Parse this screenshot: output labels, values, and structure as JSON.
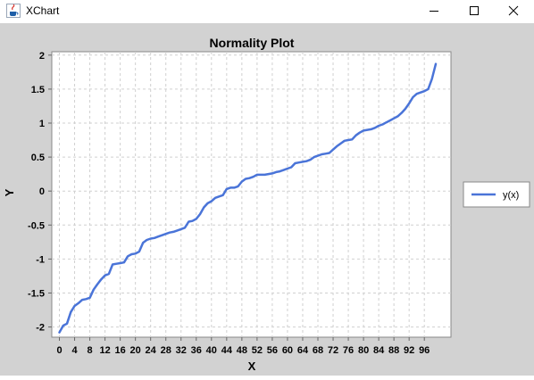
{
  "window": {
    "title": "XChart",
    "icon": "java-cup-icon",
    "controls": [
      "minimize-icon",
      "maximize-icon",
      "close-icon"
    ]
  },
  "chart_data": {
    "type": "line",
    "title": "Normality Plot",
    "xlabel": "X",
    "ylabel": "Y",
    "xlim": [
      -2,
      103
    ],
    "ylim": [
      -2.15,
      2.05
    ],
    "x_ticks": [
      0,
      4,
      8,
      12,
      16,
      20,
      24,
      28,
      32,
      36,
      40,
      44,
      48,
      52,
      56,
      60,
      64,
      68,
      72,
      76,
      80,
      84,
      88,
      92,
      96
    ],
    "x_tick_labels": [
      "0",
      "4",
      "8",
      "12",
      "16",
      "20",
      "24",
      "28",
      "32",
      "36",
      "40",
      "44",
      "48",
      "52",
      "56",
      "60",
      "64",
      "68",
      "72",
      "76",
      "80",
      "84",
      "88",
      "92",
      "96"
    ],
    "y_ticks": [
      -2,
      -1.5,
      -1,
      -0.5,
      0,
      0.5,
      1,
      1.5,
      2
    ],
    "y_tick_labels": [
      "-2",
      "-1.5",
      "-1",
      "-0.5",
      "0",
      "0.5",
      "1",
      "1.5",
      "2"
    ],
    "grid": true,
    "legend_position": "outside-right",
    "series": [
      {
        "name": "y(x)",
        "color": "#4a74d8",
        "x": [
          0,
          1,
          2,
          3,
          4,
          5,
          6,
          7,
          8,
          9,
          10,
          11,
          12,
          13,
          14,
          15,
          16,
          17,
          18,
          19,
          20,
          21,
          22,
          23,
          24,
          25,
          26,
          27,
          28,
          29,
          30,
          31,
          32,
          33,
          34,
          35,
          36,
          37,
          38,
          39,
          40,
          41,
          42,
          43,
          44,
          45,
          46,
          47,
          48,
          49,
          50,
          51,
          52,
          53,
          54,
          55,
          56,
          57,
          58,
          59,
          60,
          61,
          62,
          63,
          64,
          65,
          66,
          67,
          68,
          69,
          70,
          71,
          72,
          73,
          74,
          75,
          76,
          77,
          78,
          79,
          80,
          81,
          82,
          83,
          84,
          85,
          86,
          87,
          88,
          89,
          90,
          91,
          92,
          93,
          94,
          95,
          96,
          97,
          98,
          99
        ],
        "values": [
          -2.08,
          -1.98,
          -1.95,
          -1.78,
          -1.69,
          -1.65,
          -1.6,
          -1.59,
          -1.57,
          -1.45,
          -1.37,
          -1.3,
          -1.24,
          -1.22,
          -1.08,
          -1.07,
          -1.06,
          -1.05,
          -0.96,
          -0.93,
          -0.92,
          -0.89,
          -0.76,
          -0.72,
          -0.7,
          -0.69,
          -0.67,
          -0.65,
          -0.63,
          -0.61,
          -0.6,
          -0.58,
          -0.56,
          -0.54,
          -0.45,
          -0.44,
          -0.41,
          -0.34,
          -0.24,
          -0.18,
          -0.15,
          -0.1,
          -0.08,
          -0.06,
          0.03,
          0.05,
          0.05,
          0.07,
          0.14,
          0.18,
          0.19,
          0.21,
          0.24,
          0.24,
          0.24,
          0.25,
          0.26,
          0.28,
          0.29,
          0.31,
          0.33,
          0.35,
          0.41,
          0.42,
          0.43,
          0.44,
          0.46,
          0.5,
          0.52,
          0.54,
          0.55,
          0.56,
          0.61,
          0.66,
          0.7,
          0.74,
          0.75,
          0.76,
          0.82,
          0.86,
          0.89,
          0.9,
          0.91,
          0.93,
          0.96,
          0.98,
          1.01,
          1.04,
          1.07,
          1.1,
          1.15,
          1.21,
          1.29,
          1.38,
          1.43,
          1.45,
          1.47,
          1.5,
          1.65,
          1.87
        ]
      }
    ]
  }
}
